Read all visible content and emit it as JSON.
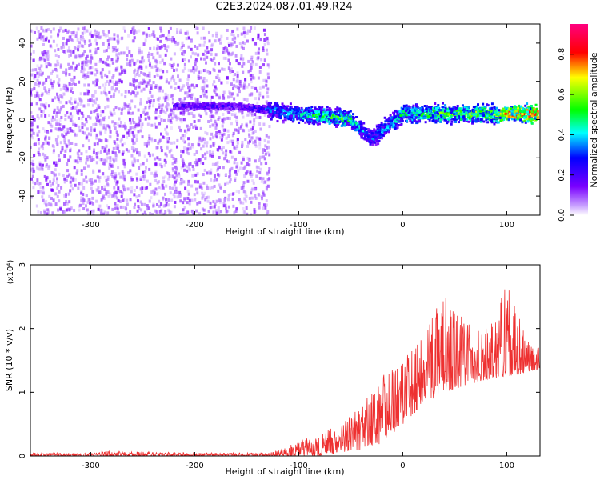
{
  "title": "C2E3.2024.087.01.49.R24",
  "colors": {
    "snr_line": "#ee3030",
    "spectrogram_hues": [
      "#ffffff",
      "#7a00ff",
      "#0000ff",
      "#00ffff",
      "#00ff00",
      "#ffff00",
      "#ff0000",
      "#ff0080"
    ]
  },
  "chart_data": [
    {
      "type": "heatmap",
      "title": "C2E3.2024.087.01.49.R24",
      "xlabel": "Height of straight line (km)",
      "ylabel": "Frequency (Hz)",
      "xlim": [
        -358,
        132
      ],
      "ylim": [
        -50,
        50
      ],
      "x_ticks": [
        -300,
        -200,
        -100,
        0,
        100
      ],
      "y_ticks": [
        -40,
        -20,
        0,
        20,
        40
      ],
      "grid": false,
      "colorbar": {
        "label": "Normalized spectral amplitude",
        "range": [
          0.0,
          0.95
        ],
        "ticks": [
          "0.0",
          "0.2",
          "0.4",
          "0.6",
          "0.8"
        ]
      },
      "regions": [
        {
          "x_range": [
            -358,
            -128
          ],
          "freq_range": [
            -50,
            48
          ],
          "amplitude": 0.1,
          "description_level": "diffuse noise"
        },
        {
          "x_range": [
            -128,
            132
          ],
          "freq_center": [
            6,
            1.5
          ],
          "freq_halfwidth": 6,
          "amplitude": [
            0.25,
            0.9
          ]
        }
      ],
      "signal_track": {
        "x": [
          -220,
          -160,
          -130,
          -100,
          -80,
          -60,
          -50,
          -40,
          -30,
          0,
          30,
          60,
          90,
          110,
          130
        ],
        "freq_hz": [
          7,
          7,
          5,
          3,
          2,
          1,
          0,
          -5,
          -10,
          3,
          3,
          3,
          3,
          3,
          3
        ],
        "amplitude": [
          0.2,
          0.2,
          0.3,
          0.4,
          0.45,
          0.5,
          0.45,
          0.35,
          0.3,
          0.45,
          0.5,
          0.55,
          0.6,
          0.75,
          0.8
        ]
      }
    },
    {
      "type": "line",
      "xlabel": "Height of straight line (km)",
      "ylabel": "SNR (10 * v/v)",
      "y_multiplier": "(x10⁴)",
      "xlim": [
        -358,
        132
      ],
      "ylim": [
        0,
        3
      ],
      "x_ticks": [
        -300,
        -200,
        -100,
        0,
        100
      ],
      "y_ticks": [
        0,
        1,
        2,
        3
      ],
      "grid": false,
      "series": [
        {
          "color": "#ee3030",
          "envelope_x": [
            -358,
            -300,
            -280,
            -200,
            -130,
            -110,
            -100,
            -80,
            -60,
            -40,
            -20,
            0,
            20,
            40,
            60,
            80,
            100,
            120,
            132
          ],
          "envelope_upper": [
            0.05,
            0.05,
            0.08,
            0.05,
            0.05,
            0.15,
            0.25,
            0.35,
            0.55,
            0.8,
            1.25,
            1.5,
            1.9,
            2.6,
            2.1,
            2.0,
            2.75,
            1.8,
            1.7
          ],
          "envelope_lower": [
            0.0,
            0.0,
            0.0,
            0.0,
            0.0,
            0.0,
            0.0,
            0.0,
            0.05,
            0.1,
            0.2,
            0.5,
            0.8,
            1.0,
            1.1,
            1.2,
            1.25,
            1.3,
            1.35
          ]
        }
      ]
    }
  ]
}
